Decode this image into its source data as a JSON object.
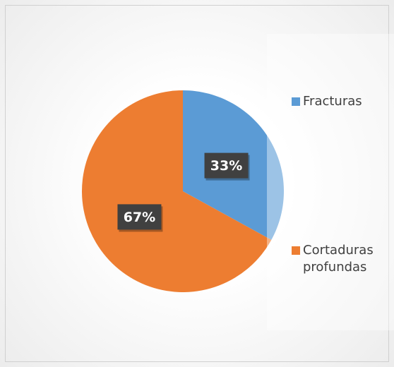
{
  "chart_data": {
    "type": "pie",
    "categories": [
      "Fracturas",
      "Cortaduras profundas"
    ],
    "values": [
      33,
      67
    ],
    "value_labels": [
      "33%",
      "67%"
    ],
    "colors": [
      "#5b9bd5",
      "#ed7d31"
    ],
    "legend": "right"
  }
}
